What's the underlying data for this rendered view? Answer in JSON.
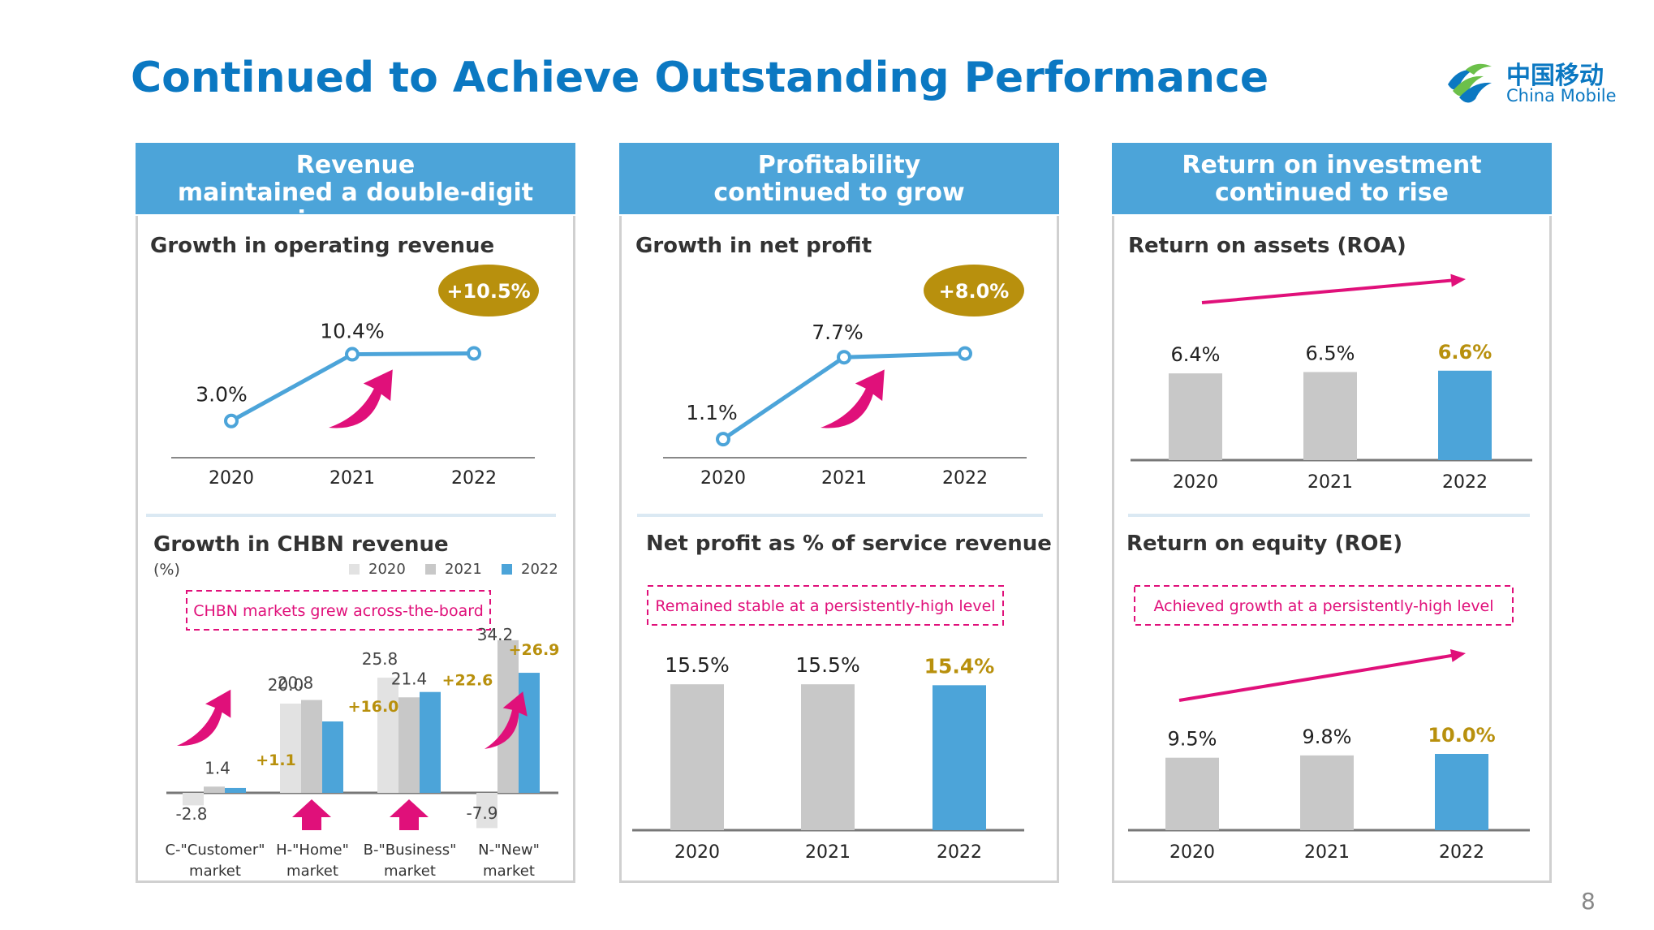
{
  "title": "Continued to Achieve Outstanding Performance",
  "logo": {
    "cn": "中国移动",
    "en": "China Mobile"
  },
  "page_number": "8",
  "colors": {
    "accent": "#0b78c2",
    "header": "#4ca4d9",
    "highlight": "#b8900d",
    "arrow": "#e0107a",
    "bar_grey": "#c8c8c8",
    "bar_light": "#e2e2e2",
    "bar_blue": "#4ca4d9"
  },
  "panels": [
    {
      "header_line1": "Revenue",
      "header_line2": "maintained a double-digit increase",
      "top_title": "Growth in operating revenue",
      "top_badge": "+10.5%",
      "bottom_title": "Growth in CHBN revenue",
      "bottom_unit": "(%)",
      "bottom_note": "CHBN markets grew across-the-board"
    },
    {
      "header_line1": "Profitability",
      "header_line2": "continued to grow",
      "top_title": "Growth in net profit",
      "top_badge": "+8.0%",
      "bottom_title": "Net profit as % of service revenue",
      "bottom_note": "Remained stable at a persistently-high level"
    },
    {
      "header_line1": "Return on investment",
      "header_line2": "continued to rise",
      "top_title": "Return on assets (ROA)",
      "bottom_title": "Return on equity (ROE)",
      "bottom_note": "Achieved growth at a persistently-high level"
    }
  ],
  "chart_data": [
    {
      "type": "line",
      "title": "Growth in operating revenue",
      "x": [
        "2020",
        "2021",
        "2022"
      ],
      "values": [
        3.0,
        10.4,
        10.5
      ],
      "labels": [
        "3.0%",
        "10.4%",
        ""
      ],
      "badge": "+10.5%"
    },
    {
      "type": "bar",
      "title": "Growth in CHBN revenue",
      "unit": "(%)",
      "legend": [
        "2020",
        "2021",
        "2022"
      ],
      "categories": [
        {
          "line1": "C-\"Customer\"",
          "line2": "market"
        },
        {
          "line1": "H-\"Home\"",
          "line2": "market"
        },
        {
          "line1": "B-\"Business\"",
          "line2": "market"
        },
        {
          "line1": "N-\"New\"",
          "line2": "market"
        }
      ],
      "series": [
        {
          "name": "2020",
          "values": [
            -2.8,
            20.0,
            25.8,
            -7.9
          ],
          "labels": [
            "-2.8",
            "20.0",
            "25.8",
            "-7.9"
          ]
        },
        {
          "name": "2021",
          "values": [
            1.4,
            20.8,
            21.4,
            34.2
          ],
          "labels": [
            "1.4",
            "20.8",
            "21.4",
            "34.2"
          ]
        },
        {
          "name": "2022",
          "values": [
            1.1,
            16.0,
            22.6,
            26.9
          ],
          "labels": [
            "+1.1",
            "+16.0",
            "+22.6",
            "+26.9"
          ]
        }
      ]
    },
    {
      "type": "line",
      "title": "Growth in net profit",
      "x": [
        "2020",
        "2021",
        "2022"
      ],
      "values": [
        1.1,
        7.7,
        8.0
      ],
      "labels": [
        "1.1%",
        "7.7%",
        ""
      ],
      "badge": "+8.0%"
    },
    {
      "type": "bar",
      "title": "Net profit as % of service revenue",
      "categories": [
        "2020",
        "2021",
        "2022"
      ],
      "values": [
        15.5,
        15.5,
        15.4
      ],
      "labels": [
        "15.5%",
        "15.5%",
        "15.4%"
      ]
    },
    {
      "type": "bar",
      "title": "Return on assets (ROA)",
      "categories": [
        "2020",
        "2021",
        "2022"
      ],
      "values": [
        6.4,
        6.5,
        6.6
      ],
      "labels": [
        "6.4%",
        "6.5%",
        "6.6%"
      ]
    },
    {
      "type": "bar",
      "title": "Return on equity (ROE)",
      "categories": [
        "2020",
        "2021",
        "2022"
      ],
      "values": [
        9.5,
        9.8,
        10.0
      ],
      "labels": [
        "9.5%",
        "9.8%",
        "10.0%"
      ]
    }
  ]
}
